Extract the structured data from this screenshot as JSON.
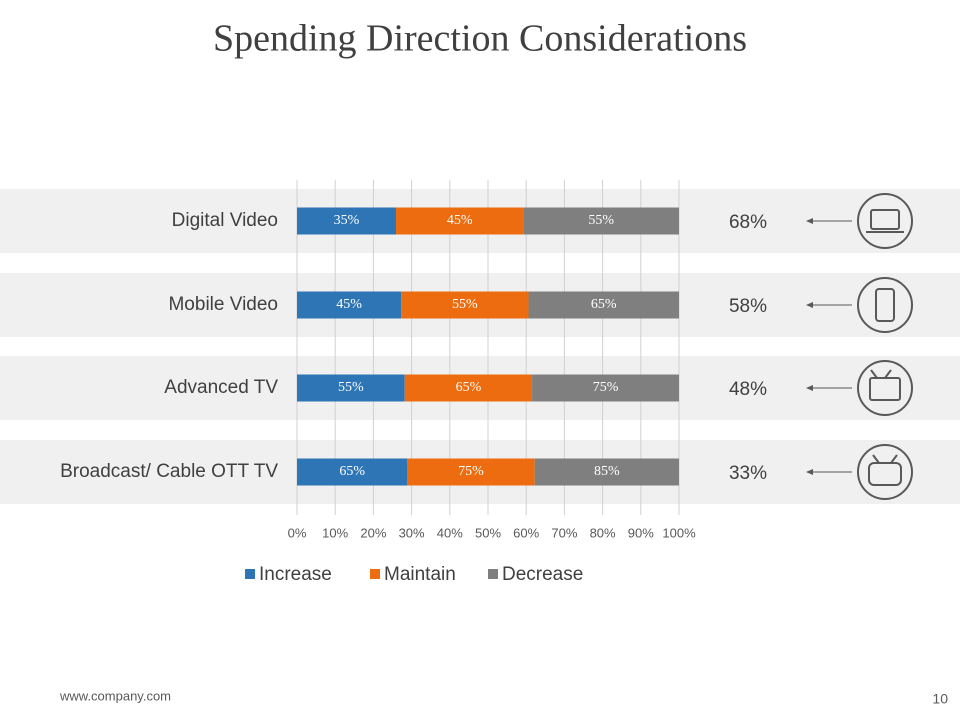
{
  "chart_data": {
    "type": "bar",
    "orientation": "horizontal",
    "stack": "percent",
    "title": "Spending Direction Considerations",
    "categories": [
      "Digital Video",
      "Mobile Video",
      "Advanced TV",
      "Broadcast/  Cable OTT TV"
    ],
    "series": [
      {
        "name": "Increase",
        "color": "#2e75b6",
        "values": [
          35,
          45,
          55,
          65
        ],
        "value_labels": [
          "35%",
          "45%",
          "55%",
          "65%"
        ]
      },
      {
        "name": "Maintain",
        "color": "#ed6c0f",
        "values": [
          45,
          55,
          65,
          75
        ],
        "value_labels": [
          "45%",
          "55%",
          "65%",
          "75%"
        ]
      },
      {
        "name": "Decrease",
        "color": "#7f7f7f",
        "values": [
          55,
          65,
          75,
          85
        ],
        "value_labels": [
          "55%",
          "65%",
          "75%",
          "85%"
        ]
      }
    ],
    "xlim": [
      0,
      100
    ],
    "xticks": [
      {
        "value": 0,
        "label": "0%"
      },
      {
        "value": 10,
        "label": "10%"
      },
      {
        "value": 20,
        "label": "20%"
      },
      {
        "value": 30,
        "label": "30%"
      },
      {
        "value": 40,
        "label": "40%"
      },
      {
        "value": 50,
        "label": "50%"
      },
      {
        "value": 60,
        "label": "60%"
      },
      {
        "value": 70,
        "label": "70%"
      },
      {
        "value": 80,
        "label": "80%"
      },
      {
        "value": 90,
        "label": "90%"
      },
      {
        "value": 100,
        "label": "100%"
      }
    ],
    "grid": true,
    "legend": "bottom",
    "side_labels": [
      "68%",
      "58%",
      "48%",
      "33%"
    ]
  },
  "footer": {
    "url": "www.company.com",
    "page": "10"
  }
}
